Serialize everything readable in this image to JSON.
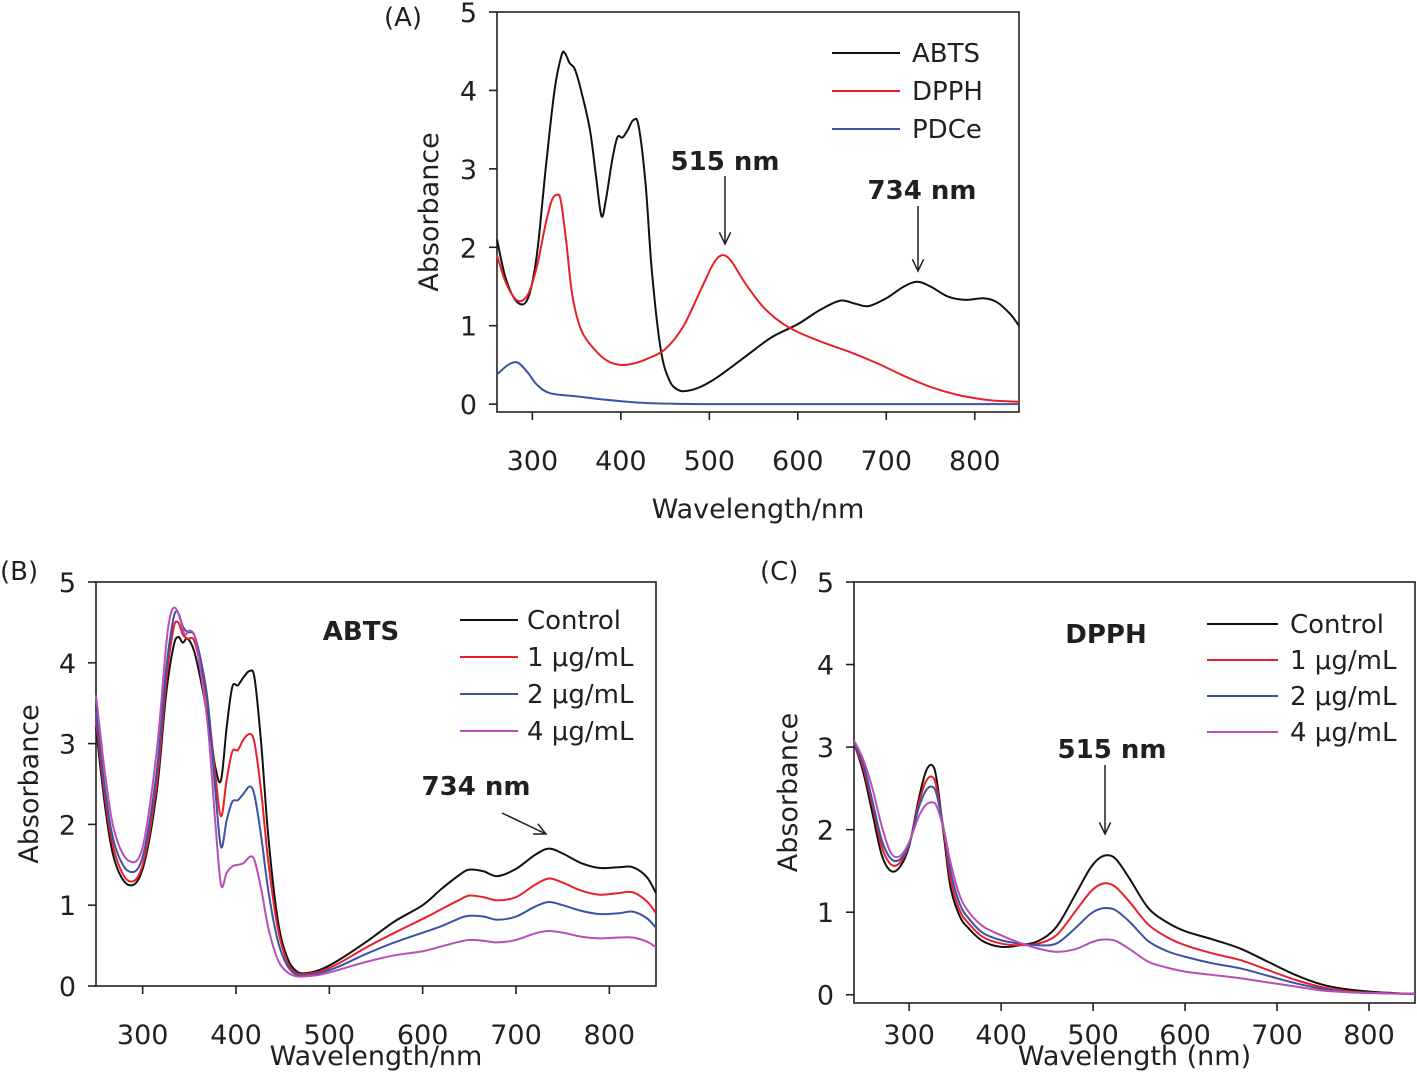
{
  "chart_data": [
    {
      "panel": "(A)",
      "type": "line",
      "xlabel": "Wavelength/nm",
      "ylabel": "Absorbance",
      "xlim": [
        260,
        850
      ],
      "ylim": [
        -0.1,
        5
      ],
      "xticks": [
        300,
        400,
        500,
        600,
        700,
        800
      ],
      "yticks": [
        0,
        1,
        2,
        3,
        4,
        5
      ],
      "legend_position": "top-right",
      "inset_label": "",
      "annotations": [
        {
          "text": "515 nm",
          "x": 515,
          "y": 1.9
        },
        {
          "text": "734 nm",
          "x": 734,
          "y": 1.57
        }
      ],
      "series": [
        {
          "name": "ABTS",
          "color": "#111111",
          "x": [
            260,
            270,
            283,
            295,
            305,
            315,
            325,
            333,
            337,
            342,
            348,
            355,
            365,
            372,
            378,
            383,
            390,
            396,
            402,
            408,
            414,
            420,
            428,
            435,
            445,
            455,
            465,
            475,
            490,
            510,
            540,
            570,
            600,
            625,
            648,
            665,
            680,
            700,
            720,
            735,
            750,
            770,
            790,
            810,
            825,
            840,
            850
          ],
          "y": [
            2.1,
            1.6,
            1.3,
            1.35,
            1.9,
            3.0,
            4.0,
            4.45,
            4.47,
            4.35,
            4.27,
            4.0,
            3.5,
            2.9,
            2.4,
            2.6,
            3.1,
            3.4,
            3.4,
            3.5,
            3.62,
            3.55,
            2.8,
            1.7,
            0.7,
            0.3,
            0.18,
            0.17,
            0.22,
            0.35,
            0.6,
            0.85,
            1.02,
            1.2,
            1.32,
            1.28,
            1.25,
            1.35,
            1.5,
            1.56,
            1.5,
            1.37,
            1.33,
            1.35,
            1.3,
            1.15,
            1.0
          ]
        },
        {
          "name": "DPPH",
          "color": "#e8202a",
          "x": [
            260,
            270,
            283,
            295,
            305,
            315,
            322,
            328,
            332,
            338,
            345,
            355,
            370,
            385,
            400,
            415,
            430,
            450,
            470,
            490,
            505,
            515,
            525,
            540,
            560,
            580,
            600,
            630,
            660,
            690,
            720,
            750,
            780,
            810,
            830,
            850
          ],
          "y": [
            1.9,
            1.55,
            1.32,
            1.4,
            1.75,
            2.3,
            2.6,
            2.67,
            2.6,
            2.1,
            1.4,
            0.95,
            0.7,
            0.55,
            0.5,
            0.52,
            0.58,
            0.7,
            0.98,
            1.45,
            1.8,
            1.9,
            1.82,
            1.55,
            1.25,
            1.05,
            0.92,
            0.78,
            0.66,
            0.52,
            0.36,
            0.22,
            0.12,
            0.06,
            0.04,
            0.03
          ]
        },
        {
          "name": "PDCe",
          "color": "#3a53a4",
          "x": [
            260,
            270,
            278,
            285,
            295,
            305,
            320,
            350,
            380,
            420,
            460,
            500,
            600,
            700,
            800,
            850
          ],
          "y": [
            0.38,
            0.48,
            0.53,
            0.52,
            0.4,
            0.25,
            0.14,
            0.1,
            0.06,
            0.02,
            0.005,
            0.0,
            0.0,
            0.0,
            0.0,
            0.0
          ]
        }
      ]
    },
    {
      "panel": "(B)",
      "type": "line",
      "xlabel": "Wavelength/nm",
      "ylabel": "Absorbance",
      "xlim": [
        250,
        850
      ],
      "ylim": [
        0,
        5
      ],
      "xticks": [
        300,
        400,
        500,
        600,
        700,
        800
      ],
      "yticks": [
        0,
        1,
        2,
        3,
        4,
        5
      ],
      "legend_position": "top-right",
      "inset_label": "ABTS",
      "annotations": [
        {
          "text": "734 nm",
          "x": 734,
          "y": 1.7
        }
      ],
      "series": [
        {
          "name": "Control",
          "color": "#111111",
          "x": [
            250,
            260,
            270,
            285,
            300,
            315,
            325,
            333,
            338,
            343,
            348,
            355,
            362,
            370,
            378,
            384,
            390,
            396,
            402,
            408,
            415,
            420,
            427,
            435,
            445,
            455,
            465,
            475,
            490,
            510,
            540,
            570,
            600,
            620,
            640,
            650,
            665,
            680,
            700,
            720,
            735,
            750,
            770,
            790,
            810,
            825,
            840,
            850
          ],
          "y": [
            3.2,
            2.2,
            1.55,
            1.25,
            1.45,
            2.4,
            3.6,
            4.2,
            4.32,
            4.25,
            4.3,
            4.15,
            3.8,
            3.3,
            2.7,
            2.55,
            3.2,
            3.7,
            3.72,
            3.82,
            3.9,
            3.8,
            3.0,
            1.8,
            0.8,
            0.35,
            0.18,
            0.16,
            0.2,
            0.32,
            0.55,
            0.8,
            1.0,
            1.2,
            1.38,
            1.44,
            1.42,
            1.36,
            1.45,
            1.62,
            1.7,
            1.64,
            1.52,
            1.46,
            1.47,
            1.47,
            1.35,
            1.15
          ]
        },
        {
          "name": "1 μg/mL",
          "color": "#e8202a",
          "x": [
            250,
            260,
            270,
            285,
            300,
            315,
            325,
            333,
            338,
            343,
            348,
            355,
            362,
            370,
            378,
            384,
            390,
            396,
            402,
            408,
            415,
            420,
            427,
            435,
            445,
            455,
            465,
            475,
            490,
            510,
            540,
            570,
            600,
            620,
            640,
            650,
            665,
            680,
            700,
            720,
            735,
            750,
            770,
            790,
            810,
            825,
            840,
            850
          ],
          "y": [
            3.3,
            2.3,
            1.65,
            1.3,
            1.5,
            2.5,
            3.75,
            4.42,
            4.5,
            4.35,
            4.3,
            4.28,
            3.95,
            3.45,
            2.6,
            2.1,
            2.55,
            2.9,
            2.92,
            3.05,
            3.12,
            3.0,
            2.4,
            1.5,
            0.7,
            0.3,
            0.16,
            0.15,
            0.18,
            0.28,
            0.48,
            0.66,
            0.83,
            0.95,
            1.07,
            1.12,
            1.1,
            1.06,
            1.1,
            1.25,
            1.33,
            1.28,
            1.18,
            1.13,
            1.15,
            1.16,
            1.05,
            0.9
          ]
        },
        {
          "name": "2 μg/mL",
          "color": "#3a53a4",
          "x": [
            250,
            260,
            270,
            285,
            300,
            315,
            325,
            333,
            338,
            343,
            348,
            355,
            362,
            370,
            378,
            384,
            390,
            396,
            402,
            408,
            415,
            420,
            427,
            435,
            445,
            455,
            465,
            475,
            490,
            510,
            540,
            570,
            600,
            620,
            640,
            650,
            665,
            680,
            700,
            720,
            735,
            750,
            770,
            790,
            810,
            825,
            840,
            850
          ],
          "y": [
            3.4,
            2.4,
            1.75,
            1.42,
            1.6,
            2.65,
            3.9,
            4.55,
            4.62,
            4.45,
            4.38,
            4.35,
            4.05,
            3.5,
            2.4,
            1.72,
            2.05,
            2.28,
            2.3,
            2.38,
            2.47,
            2.35,
            1.85,
            1.15,
            0.55,
            0.25,
            0.14,
            0.13,
            0.16,
            0.24,
            0.4,
            0.54,
            0.66,
            0.74,
            0.84,
            0.87,
            0.86,
            0.82,
            0.86,
            0.98,
            1.04,
            1.0,
            0.93,
            0.89,
            0.9,
            0.92,
            0.84,
            0.72
          ]
        },
        {
          "name": "4 μg/mL",
          "color": "#b94fb5",
          "x": [
            250,
            260,
            270,
            285,
            300,
            315,
            325,
            330,
            335,
            340,
            345,
            350,
            356,
            362,
            370,
            378,
            384,
            390,
            396,
            402,
            408,
            415,
            420,
            427,
            435,
            445,
            455,
            465,
            475,
            490,
            510,
            540,
            570,
            600,
            620,
            640,
            650,
            665,
            680,
            700,
            720,
            735,
            750,
            770,
            790,
            810,
            825,
            840,
            850
          ],
          "y": [
            3.6,
            2.6,
            1.9,
            1.55,
            1.72,
            2.9,
            4.2,
            4.6,
            4.68,
            4.55,
            4.35,
            4.4,
            4.32,
            3.9,
            3.2,
            2.0,
            1.25,
            1.4,
            1.48,
            1.5,
            1.52,
            1.6,
            1.55,
            1.2,
            0.7,
            0.32,
            0.17,
            0.12,
            0.12,
            0.14,
            0.2,
            0.3,
            0.38,
            0.43,
            0.49,
            0.55,
            0.57,
            0.56,
            0.54,
            0.57,
            0.65,
            0.68,
            0.66,
            0.61,
            0.59,
            0.6,
            0.6,
            0.55,
            0.48
          ]
        }
      ]
    },
    {
      "panel": "(C)",
      "type": "line",
      "xlabel": "Wavelength (nm)",
      "ylabel": "Absorbance",
      "xlim": [
        240,
        850
      ],
      "ylim": [
        -0.1,
        5
      ],
      "xticks": [
        300,
        400,
        500,
        600,
        700,
        800
      ],
      "yticks": [
        0,
        1,
        2,
        3,
        4,
        5
      ],
      "legend_position": "top-right",
      "inset_label": "DPPH",
      "annotations": [
        {
          "text": "515 nm",
          "x": 515,
          "y": 1.7
        }
      ],
      "series": [
        {
          "name": "Control",
          "color": "#111111",
          "x": [
            240,
            250,
            260,
            270,
            280,
            290,
            300,
            310,
            318,
            325,
            330,
            338,
            345,
            355,
            365,
            380,
            400,
            420,
            440,
            460,
            480,
            495,
            505,
            515,
            525,
            540,
            560,
            580,
            600,
            630,
            660,
            690,
            720,
            750,
            780,
            810,
            850
          ],
          "y": [
            3.05,
            2.7,
            2.2,
            1.7,
            1.5,
            1.55,
            1.8,
            2.35,
            2.7,
            2.78,
            2.6,
            1.9,
            1.3,
            0.95,
            0.8,
            0.65,
            0.58,
            0.6,
            0.65,
            0.82,
            1.2,
            1.5,
            1.64,
            1.69,
            1.64,
            1.4,
            1.05,
            0.88,
            0.77,
            0.67,
            0.56,
            0.4,
            0.24,
            0.12,
            0.06,
            0.03,
            0.01
          ]
        },
        {
          "name": "1 μg/mL",
          "color": "#e8202a",
          "x": [
            240,
            250,
            260,
            270,
            280,
            290,
            300,
            310,
            318,
            325,
            330,
            338,
            345,
            355,
            365,
            380,
            400,
            420,
            440,
            460,
            480,
            495,
            505,
            515,
            525,
            540,
            560,
            580,
            600,
            630,
            660,
            690,
            720,
            750,
            780,
            810,
            850
          ],
          "y": [
            3.05,
            2.75,
            2.3,
            1.8,
            1.58,
            1.6,
            1.82,
            2.3,
            2.58,
            2.64,
            2.5,
            1.95,
            1.4,
            1.02,
            0.86,
            0.7,
            0.62,
            0.6,
            0.62,
            0.72,
            1.0,
            1.22,
            1.32,
            1.35,
            1.3,
            1.12,
            0.85,
            0.7,
            0.6,
            0.5,
            0.42,
            0.3,
            0.18,
            0.09,
            0.04,
            0.02,
            0.01
          ]
        },
        {
          "name": "2 μg/mL",
          "color": "#3a53a4",
          "x": [
            240,
            250,
            260,
            270,
            280,
            290,
            300,
            310,
            318,
            325,
            330,
            338,
            345,
            355,
            365,
            380,
            400,
            420,
            440,
            460,
            480,
            495,
            505,
            515,
            525,
            540,
            560,
            580,
            600,
            630,
            660,
            690,
            720,
            750,
            780,
            810,
            850
          ],
          "y": [
            3.05,
            2.8,
            2.35,
            1.88,
            1.65,
            1.64,
            1.82,
            2.25,
            2.47,
            2.52,
            2.42,
            1.98,
            1.5,
            1.1,
            0.92,
            0.75,
            0.66,
            0.62,
            0.6,
            0.62,
            0.8,
            0.96,
            1.03,
            1.05,
            1.02,
            0.88,
            0.65,
            0.53,
            0.46,
            0.38,
            0.32,
            0.23,
            0.14,
            0.07,
            0.03,
            0.02,
            0.01
          ]
        },
        {
          "name": "4 μg/mL",
          "color": "#b94fb5",
          "x": [
            240,
            250,
            260,
            270,
            280,
            290,
            300,
            310,
            318,
            325,
            330,
            338,
            345,
            355,
            365,
            380,
            400,
            420,
            440,
            460,
            480,
            495,
            505,
            515,
            525,
            540,
            560,
            580,
            600,
            630,
            660,
            690,
            720,
            750,
            780,
            810,
            850
          ],
          "y": [
            3.08,
            2.85,
            2.5,
            2.05,
            1.72,
            1.68,
            1.85,
            2.15,
            2.3,
            2.33,
            2.28,
            1.98,
            1.6,
            1.2,
            1.0,
            0.83,
            0.72,
            0.63,
            0.56,
            0.52,
            0.55,
            0.62,
            0.66,
            0.67,
            0.65,
            0.55,
            0.4,
            0.33,
            0.28,
            0.24,
            0.2,
            0.15,
            0.1,
            0.05,
            0.03,
            0.02,
            0.01
          ]
        }
      ]
    }
  ]
}
